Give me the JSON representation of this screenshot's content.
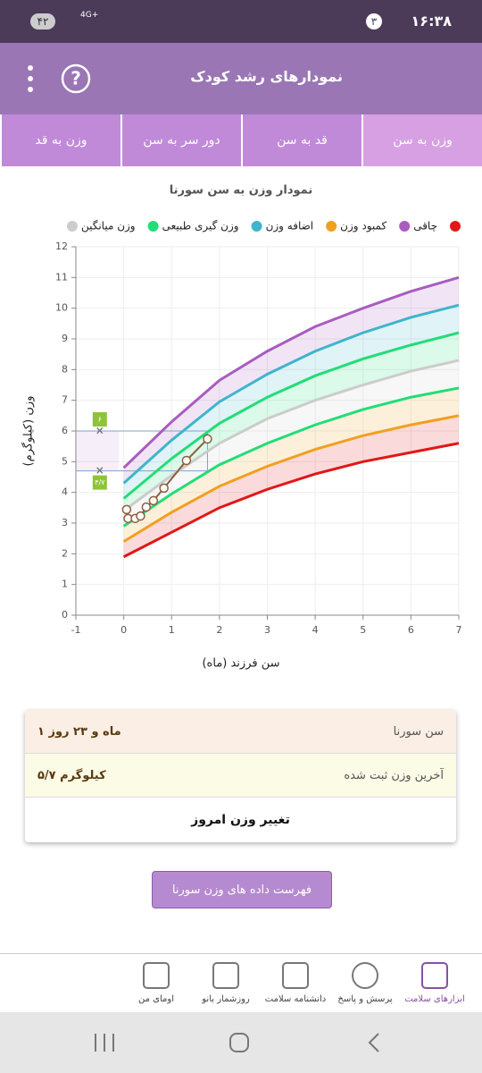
{
  "status_bar": {
    "time": "۱۶:۳۸",
    "notifications": "۳",
    "network": "4G+",
    "battery": "۴۲"
  },
  "header": {
    "title": "نمودارهای رشد کودک"
  },
  "tabs": [
    "وزن به سن",
    "قد به سن",
    "دور سر به سن",
    "وزن به قد"
  ],
  "chart_data": {
    "type": "line",
    "title": "نمودار وزن به سن سورنا",
    "legend": [
      {
        "color": "#e01818"
      },
      {
        "name": "چاقی",
        "color": "#a95cc0"
      },
      {
        "name": "کمبود وزن",
        "color": "#f0a020"
      },
      {
        "name": "اضافه وزن",
        "color": "#3fb4cc"
      },
      {
        "name": "وزن گیری طبیعی",
        "color": "#22dd77"
      },
      {
        "name": "وزن میانگین",
        "color": "#cccccc"
      }
    ],
    "x_label": "سن فرزند (ماه)",
    "y_label": "وزن (کیلوگرم)",
    "x": [
      0,
      1,
      2,
      3,
      4,
      5,
      6,
      7
    ],
    "series": [
      {
        "color": "#a95cc0",
        "values": [
          4.8,
          6.3,
          7.65,
          8.6,
          9.4,
          10.0,
          10.55,
          11.0
        ]
      },
      {
        "color": "#3fb4cc",
        "values": [
          4.3,
          5.7,
          6.95,
          7.85,
          8.6,
          9.2,
          9.7,
          10.1
        ]
      },
      {
        "color": "#22dd77",
        "values": [
          3.8,
          5.1,
          6.25,
          7.1,
          7.8,
          8.35,
          8.8,
          9.2
        ]
      },
      {
        "color": "#cccccc",
        "values": [
          3.4,
          4.55,
          5.6,
          6.4,
          7.0,
          7.5,
          7.95,
          8.3
        ]
      },
      {
        "color": "#22dd77",
        "values": [
          2.9,
          3.95,
          4.9,
          5.6,
          6.2,
          6.7,
          7.1,
          7.4
        ]
      },
      {
        "color": "#f0a020",
        "values": [
          2.4,
          3.35,
          4.2,
          4.85,
          5.4,
          5.85,
          6.2,
          6.5
        ]
      },
      {
        "color": "#e01818",
        "values": [
          1.9,
          2.7,
          3.5,
          4.1,
          4.6,
          5.0,
          5.3,
          5.6
        ]
      }
    ],
    "measurements": {
      "color": "#8b5e3c",
      "x": [
        0.06,
        0.09,
        0.24,
        0.35,
        0.47,
        0.62,
        0.84,
        1.31,
        1.75
      ],
      "values": [
        3.44,
        3.15,
        3.15,
        3.23,
        3.52,
        3.73,
        4.14,
        5.04,
        5.74
      ]
    },
    "markers": [
      {
        "value": 6,
        "label": "۶"
      },
      {
        "value": 4.7,
        "label": "۴/۷"
      }
    ],
    "xlim": [
      -1,
      7
    ],
    "xticks": [
      -1,
      0,
      1,
      2,
      3,
      4,
      5,
      6,
      7
    ],
    "ylim": [
      0,
      12
    ],
    "yticks": [
      0,
      1,
      2,
      3,
      4,
      5,
      6,
      7,
      8,
      9,
      10,
      11,
      12
    ],
    "grid": true
  },
  "info": {
    "rows": [
      {
        "label": "سن سورنا",
        "value": "۱ ماه و ۲۳ روز"
      },
      {
        "label": "آخرین وزن ثبت شده",
        "value": "۵/۷ کیلوگرم"
      }
    ],
    "action": "تغییر وزن امروز"
  },
  "button": "فهرست داده های وزن سورنا",
  "nav": [
    "ابزارهای سلامت",
    "پرسش و پاسخ",
    "دانشنامه سلامت",
    "روزشمار بانو",
    "اومای من"
  ]
}
